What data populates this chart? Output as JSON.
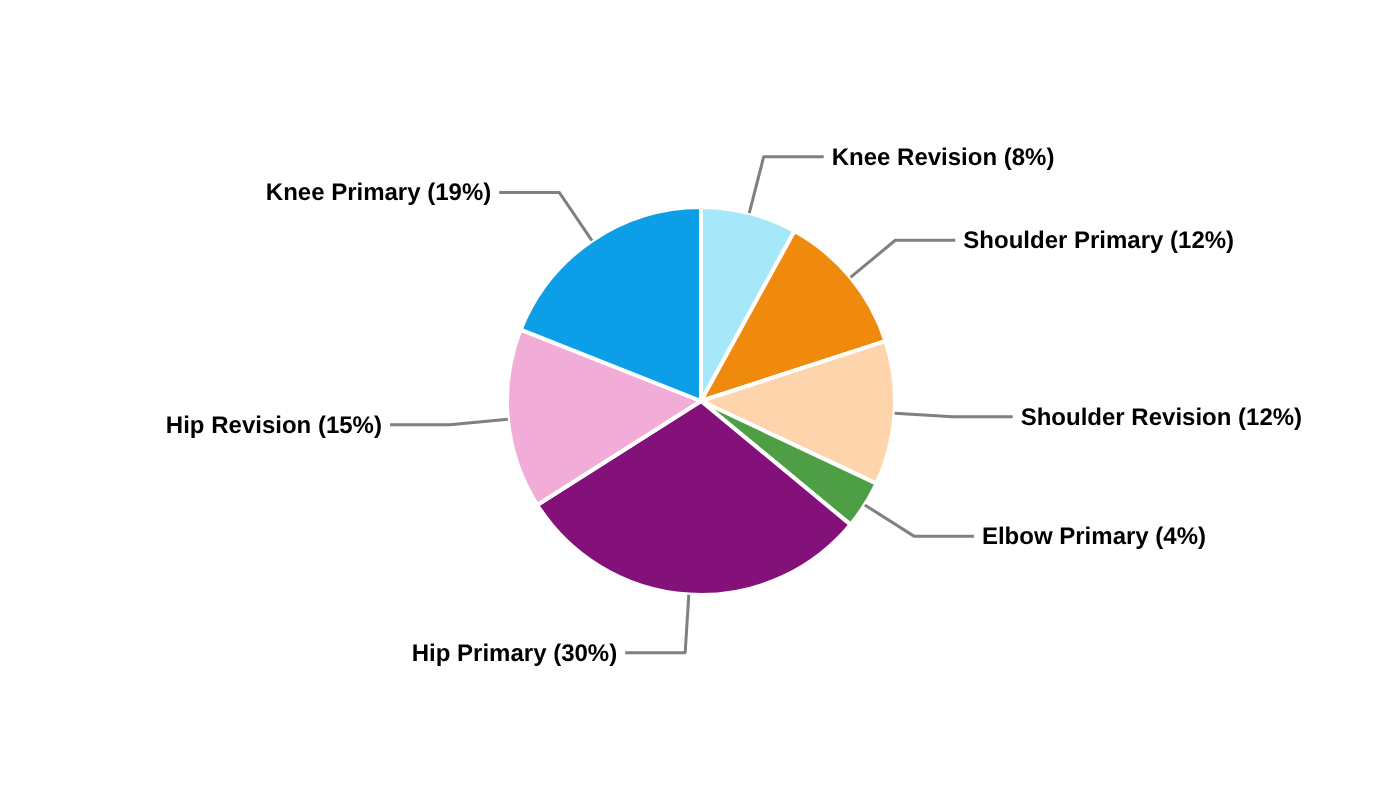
{
  "chart_data": {
    "type": "pie",
    "categories": [
      "Knee Revision",
      "Shoulder Primary",
      "Shoulder Revision",
      "Elbow Primary",
      "Hip Primary",
      "Hip Revision",
      "Knee Primary"
    ],
    "values": [
      8,
      12,
      12,
      4,
      30,
      15,
      19
    ],
    "value_labels": [
      "(8%)",
      "(12%)",
      "(12%)",
      "(4%)",
      "(30%)",
      "(15%)",
      "(19%)"
    ],
    "colors": [
      "#a6e8fa",
      "#f08a0c",
      "#fdd4ac",
      "#4e9e45",
      "#84107a",
      "#f2acd8",
      "#0d9ee8"
    ],
    "legend": false
  }
}
